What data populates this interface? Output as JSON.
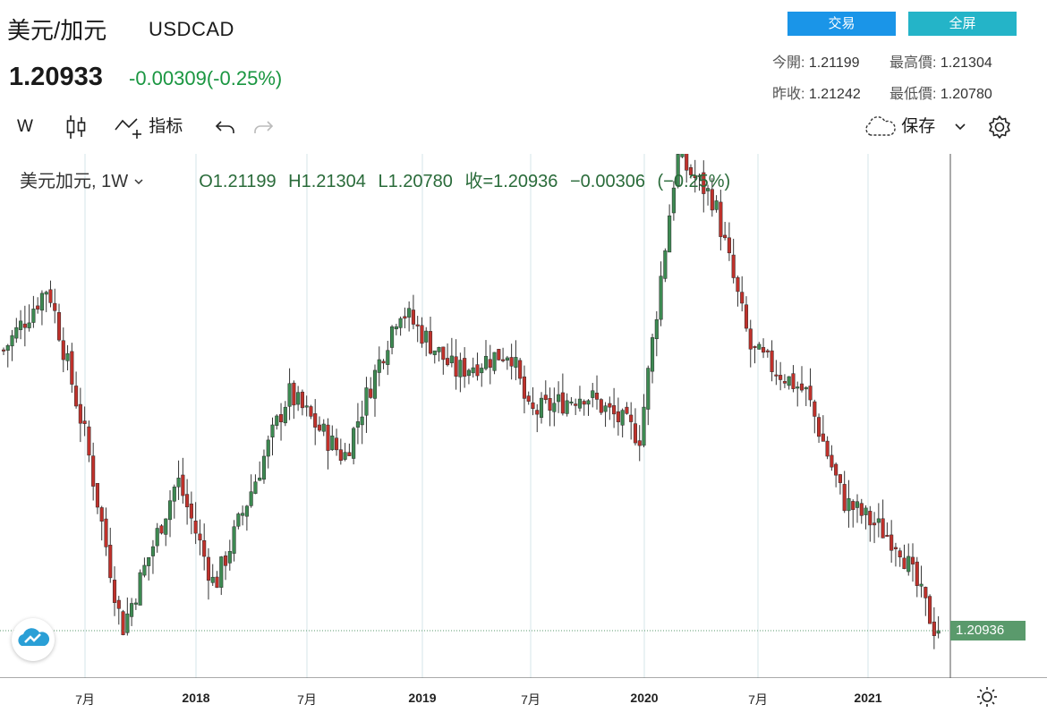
{
  "header": {
    "title": "美元/加元",
    "symbol": "USDCAD",
    "price": "1.20933",
    "change": "-0.00309(-0.25%)",
    "buttons": {
      "trade": "交易",
      "fullscreen": "全屏"
    },
    "stats": {
      "open_label": "今開:",
      "open": "1.21199",
      "high_label": "最高價:",
      "high": "1.21304",
      "prev_label": "昨收:",
      "prev": "1.21242",
      "low_label": "最低價:",
      "low": "1.20780"
    }
  },
  "toolbar": {
    "interval": "W",
    "indicators": "指标",
    "save": "保存"
  },
  "legend": {
    "name": "美元加元,",
    "interval": "1W",
    "ohlc": "O1.21199 H1.21304 L1.20780 收=1.20936 −0.00306 (−0.25%)"
  },
  "price_tag": "1.20936",
  "colors": {
    "up": "#3d8a52",
    "down": "#c0312b",
    "accent": "#1a95e8",
    "grid": "#d6e6ea"
  },
  "chart_data": {
    "type": "candlestick",
    "title": "美元加元, 1W",
    "x_tick_labels": [
      "7月",
      "2018",
      "7月",
      "2019",
      "7月",
      "2020",
      "7月",
      "2021"
    ],
    "y_range": [
      1.205,
      1.465
    ],
    "last_price": 1.20936,
    "weekly_close_trend": [
      {
        "date": "2017-03",
        "close": 1.34
      },
      {
        "date": "2017-05",
        "close": 1.37
      },
      {
        "date": "2017-07",
        "close": 1.3
      },
      {
        "date": "2017-09",
        "close": 1.21
      },
      {
        "date": "2017-12",
        "close": 1.28
      },
      {
        "date": "2018-02",
        "close": 1.23
      },
      {
        "date": "2018-06",
        "close": 1.32
      },
      {
        "date": "2018-09",
        "close": 1.29
      },
      {
        "date": "2018-12",
        "close": 1.36
      },
      {
        "date": "2019-03",
        "close": 1.33
      },
      {
        "date": "2019-06",
        "close": 1.34
      },
      {
        "date": "2019-07",
        "close": 1.31
      },
      {
        "date": "2019-10",
        "close": 1.32
      },
      {
        "date": "2020-01",
        "close": 1.3
      },
      {
        "date": "2020-03",
        "close": 1.43
      },
      {
        "date": "2020-05",
        "close": 1.41
      },
      {
        "date": "2020-07",
        "close": 1.34
      },
      {
        "date": "2020-10",
        "close": 1.32
      },
      {
        "date": "2020-12",
        "close": 1.27
      },
      {
        "date": "2021-03",
        "close": 1.25
      },
      {
        "date": "2021-05",
        "close": 1.209
      }
    ]
  }
}
